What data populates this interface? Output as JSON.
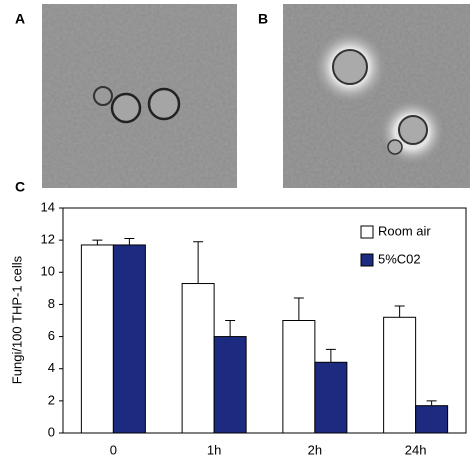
{
  "panel_labels": [
    "A",
    "B",
    "C"
  ],
  "chart_data": {
    "type": "bar",
    "y_label": "Fungi/100 THP-1 cells",
    "categories": [
      "0",
      "1h",
      "2h",
      "24h"
    ],
    "series": [
      {
        "name": "Room air",
        "color": "#ffffff",
        "values": [
          11.7,
          9.3,
          7.0,
          7.2
        ],
        "errors": [
          0.3,
          2.6,
          1.4,
          0.7
        ]
      },
      {
        "name": "5%C02",
        "color": "#1c2a80",
        "values": [
          11.7,
          6.0,
          4.4,
          1.7
        ],
        "errors": [
          0.4,
          1.0,
          0.8,
          0.3
        ]
      }
    ],
    "ylim": [
      0,
      14
    ],
    "yticks": [
      0,
      2,
      4,
      6,
      8,
      10,
      12,
      14
    ],
    "grid": false,
    "legend": "upper right"
  }
}
